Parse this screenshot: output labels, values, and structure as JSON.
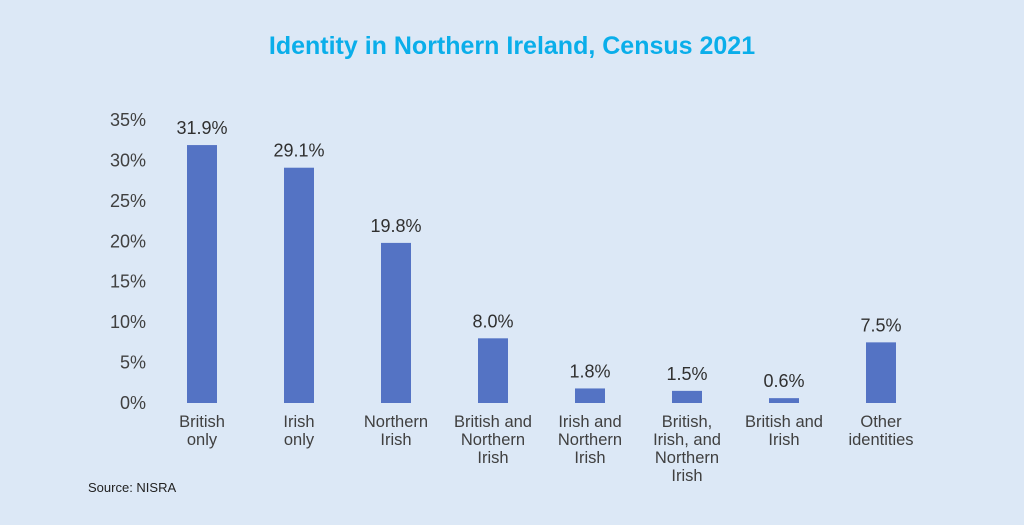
{
  "chart_data": {
    "type": "bar",
    "title": "Identity in Northern Ireland, Census 2021",
    "categories": [
      [
        "British",
        "only"
      ],
      [
        "Irish",
        "only"
      ],
      [
        "Northern",
        "Irish"
      ],
      [
        "British and",
        "Northern",
        "Irish"
      ],
      [
        "Irish and",
        "Northern",
        "Irish"
      ],
      [
        "British,",
        "Irish, and",
        "Northern",
        "Irish"
      ],
      [
        "British and",
        "Irish"
      ],
      [
        "Other",
        "identities"
      ]
    ],
    "values": [
      31.9,
      29.1,
      19.8,
      8.0,
      1.8,
      1.5,
      0.6,
      7.5
    ],
    "data_labels": [
      "31.9%",
      "29.1%",
      "19.8%",
      "8.0%",
      "1.8%",
      "1.5%",
      "0.6%",
      "7.5%"
    ],
    "yticks": [
      "0%",
      "5%",
      "10%",
      "15%",
      "20%",
      "25%",
      "30%",
      "35%"
    ],
    "ylim": [
      0,
      35
    ],
    "xlabel": "",
    "ylabel": "",
    "grid": false,
    "bar_color": "#5473c4",
    "title_color": "#0aaeea",
    "source": "Source: NISRA"
  }
}
